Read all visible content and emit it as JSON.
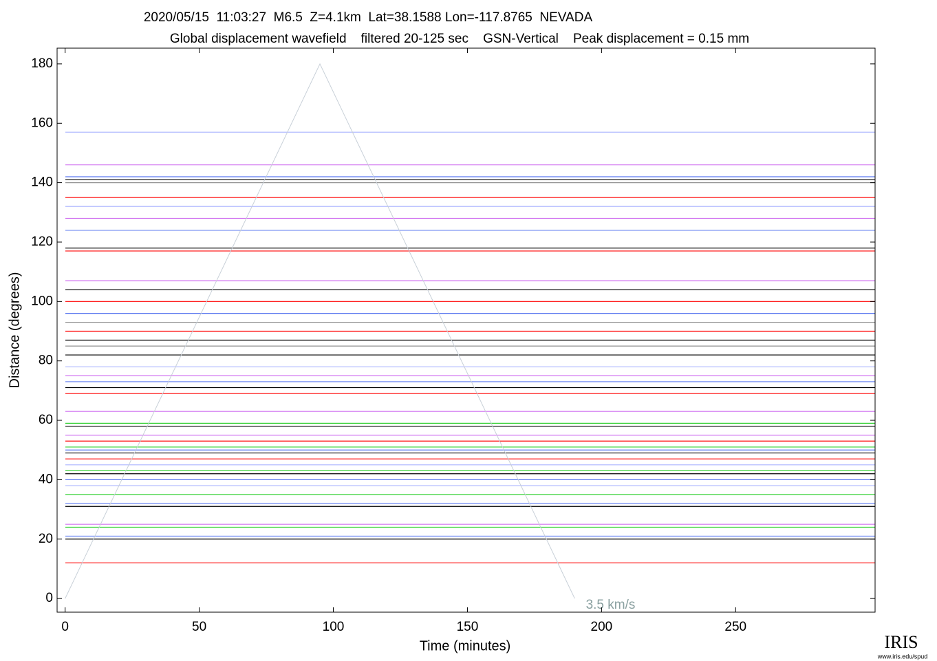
{
  "chart_data": {
    "type": "record-section",
    "title": "2020/05/15  11:03:27  M6.5  Z=4.1km  Lat=38.1588 Lon=-117.8765  NEVADA",
    "subtitle": "Global displacement wavefield    filtered 20-125 sec    GSN-Vertical    Peak displacement = 0.15 mm",
    "xlabel": "Time (minutes)",
    "ylabel": "Distance (degrees)",
    "xlim": [
      -3,
      302
    ],
    "ylim": [
      -4.6,
      185.3
    ],
    "xticks": [
      0,
      50,
      100,
      150,
      200,
      250
    ],
    "yticks": [
      0,
      20,
      40,
      60,
      80,
      100,
      120,
      140,
      160,
      180
    ],
    "traces": [
      {
        "distance": 157,
        "color": "#aab4ff"
      },
      {
        "distance": 146,
        "color": "#d070f0"
      },
      {
        "distance": 142,
        "color": "#5a78f0"
      },
      {
        "distance": 141,
        "color": "#000000"
      },
      {
        "distance": 140,
        "color": "#909090"
      },
      {
        "distance": 135,
        "color": "#ff0000"
      },
      {
        "distance": 132,
        "color": "#aab4ff"
      },
      {
        "distance": 128,
        "color": "#d070f0"
      },
      {
        "distance": 124,
        "color": "#5a78f0"
      },
      {
        "distance": 118,
        "color": "#000000"
      },
      {
        "distance": 117,
        "color": "#ff0000"
      },
      {
        "distance": 107,
        "color": "#d070f0"
      },
      {
        "distance": 104,
        "color": "#000000"
      },
      {
        "distance": 100,
        "color": "#ff0000"
      },
      {
        "distance": 96,
        "color": "#5a78f0"
      },
      {
        "distance": 93,
        "color": "#909090"
      },
      {
        "distance": 90,
        "color": "#ff0000"
      },
      {
        "distance": 87,
        "color": "#000000"
      },
      {
        "distance": 85,
        "color": "#909090"
      },
      {
        "distance": 82,
        "color": "#000000"
      },
      {
        "distance": 78,
        "color": "#aab4ff"
      },
      {
        "distance": 75,
        "color": "#d070f0"
      },
      {
        "distance": 73,
        "color": "#5a78f0"
      },
      {
        "distance": 71,
        "color": "#000000"
      },
      {
        "distance": 69,
        "color": "#ff0000"
      },
      {
        "distance": 63,
        "color": "#d070f0"
      },
      {
        "distance": 59,
        "color": "#30d030"
      },
      {
        "distance": 58,
        "color": "#000000"
      },
      {
        "distance": 55,
        "color": "#d070f0"
      },
      {
        "distance": 53,
        "color": "#ff0000"
      },
      {
        "distance": 51,
        "color": "#30d030"
      },
      {
        "distance": 50,
        "color": "#5a78f0"
      },
      {
        "distance": 49,
        "color": "#000000"
      },
      {
        "distance": 47,
        "color": "#ff0000"
      },
      {
        "distance": 45,
        "color": "#aab4ff"
      },
      {
        "distance": 43,
        "color": "#30d030"
      },
      {
        "distance": 42,
        "color": "#000000"
      },
      {
        "distance": 40,
        "color": "#5a78f0"
      },
      {
        "distance": 38,
        "color": "#aab4ff"
      },
      {
        "distance": 35,
        "color": "#30d030"
      },
      {
        "distance": 32,
        "color": "#5a78f0"
      },
      {
        "distance": 31,
        "color": "#000000"
      },
      {
        "distance": 25,
        "color": "#d070f0"
      },
      {
        "distance": 24,
        "color": "#30d030"
      },
      {
        "distance": 21,
        "color": "#5a78f0"
      },
      {
        "distance": 20,
        "color": "#000000"
      },
      {
        "distance": 12,
        "color": "#ff0000"
      }
    ],
    "reference_line": {
      "x": [
        0,
        95,
        190
      ],
      "y": [
        0,
        180,
        0
      ],
      "color": "#c8d0d8",
      "label": "3.5 km/s"
    }
  },
  "logo": {
    "name": "IRIS",
    "url": "www.iris.edu/spud"
  }
}
